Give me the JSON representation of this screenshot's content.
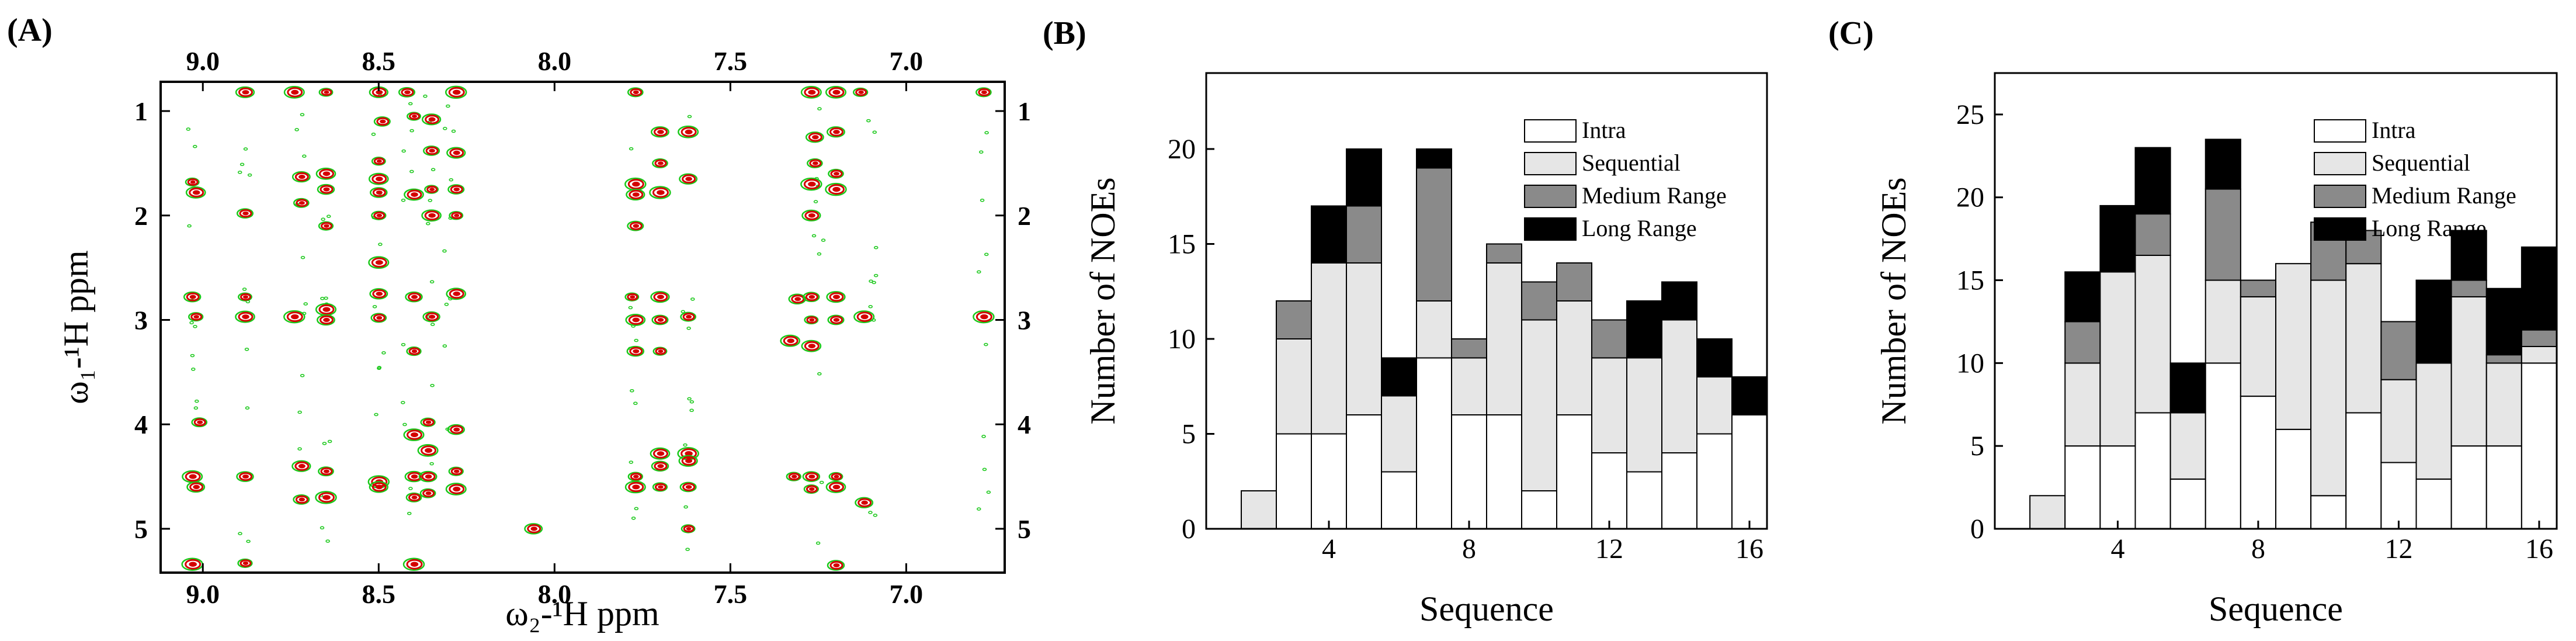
{
  "colors": {
    "intra": "#ffffff",
    "sequential": "#e6e6e6",
    "medium": "#8a8a8a",
    "long": "#000000",
    "peak_red": "#d40000",
    "peak_green": "#19c819"
  },
  "chart_data": [
    {
      "type": "heatmap",
      "subtype": "2D NMR NOESY spectrum overlay",
      "panel": "(A)",
      "title": "",
      "xlabel": "ω₂-¹H ppm",
      "ylabel": "ω₁-¹H ppm",
      "xlim": [
        9.12,
        6.72
      ],
      "ylim": [
        0.72,
        5.42
      ],
      "xticks": [
        "9.0",
        "8.5",
        "8.0",
        "7.5",
        "7.0"
      ],
      "xtick_values": [
        9.0,
        8.5,
        8.0,
        7.5,
        7.0
      ],
      "yticks": [
        "1",
        "2",
        "3",
        "4",
        "5"
      ],
      "ytick_values": [
        1,
        2,
        3,
        4,
        5
      ],
      "series_colors": [
        "#d40000",
        "#19c819"
      ],
      "x_columns": [
        9.03,
        8.88,
        8.72,
        8.65,
        8.5,
        8.42,
        8.36,
        8.3,
        7.77,
        7.62,
        7.25,
        7.1,
        6.78
      ],
      "y_rows": [
        0.82,
        1.05,
        1.4,
        1.63,
        1.75,
        1.88,
        2.0,
        2.45,
        2.75,
        2.97,
        3.08,
        3.3,
        3.55,
        3.98,
        4.1,
        4.25,
        4.4,
        4.5,
        4.6,
        4.7,
        5.02,
        5.33
      ],
      "points": [
        [
          9.03,
          1.68
        ],
        [
          9.02,
          1.78
        ],
        [
          9.03,
          2.78
        ],
        [
          9.02,
          2.97
        ],
        [
          9.03,
          4.5
        ],
        [
          9.02,
          4.6
        ],
        [
          9.01,
          3.98
        ],
        [
          9.03,
          5.34
        ],
        [
          8.88,
          0.82
        ],
        [
          8.88,
          1.98
        ],
        [
          8.88,
          2.78
        ],
        [
          8.88,
          2.97
        ],
        [
          8.88,
          4.5
        ],
        [
          8.88,
          5.33
        ],
        [
          8.74,
          0.82
        ],
        [
          8.72,
          1.63
        ],
        [
          8.72,
          1.88
        ],
        [
          8.74,
          2.97
        ],
        [
          8.72,
          4.4
        ],
        [
          8.72,
          4.72
        ],
        [
          8.65,
          0.82
        ],
        [
          8.65,
          1.6
        ],
        [
          8.65,
          1.75
        ],
        [
          8.65,
          2.1
        ],
        [
          8.65,
          2.9
        ],
        [
          8.65,
          3.0
        ],
        [
          8.65,
          4.45
        ],
        [
          8.65,
          4.7
        ],
        [
          8.5,
          0.82
        ],
        [
          8.49,
          1.1
        ],
        [
          8.5,
          1.48
        ],
        [
          8.5,
          1.65
        ],
        [
          8.5,
          1.78
        ],
        [
          8.5,
          2.0
        ],
        [
          8.5,
          2.45
        ],
        [
          8.5,
          2.75
        ],
        [
          8.5,
          2.98
        ],
        [
          8.5,
          4.55
        ],
        [
          8.5,
          4.6
        ],
        [
          8.42,
          0.82
        ],
        [
          8.4,
          1.05
        ],
        [
          8.4,
          1.8
        ],
        [
          8.4,
          2.78
        ],
        [
          8.4,
          3.3
        ],
        [
          8.4,
          4.1
        ],
        [
          8.4,
          4.5
        ],
        [
          8.4,
          4.7
        ],
        [
          8.4,
          5.34
        ],
        [
          8.35,
          1.08
        ],
        [
          8.35,
          1.38
        ],
        [
          8.35,
          1.75
        ],
        [
          8.35,
          2.0
        ],
        [
          8.35,
          2.97
        ],
        [
          8.36,
          3.98
        ],
        [
          8.36,
          4.25
        ],
        [
          8.36,
          4.5
        ],
        [
          8.36,
          4.66
        ],
        [
          8.28,
          0.82
        ],
        [
          8.28,
          1.4
        ],
        [
          8.28,
          1.75
        ],
        [
          8.28,
          2.0
        ],
        [
          8.28,
          2.75
        ],
        [
          8.28,
          4.05
        ],
        [
          8.28,
          4.45
        ],
        [
          8.28,
          4.62
        ],
        [
          8.06,
          5.0
        ],
        [
          7.77,
          0.82
        ],
        [
          7.77,
          1.7
        ],
        [
          7.77,
          1.8
        ],
        [
          7.77,
          2.1
        ],
        [
          7.78,
          2.78
        ],
        [
          7.77,
          3.0
        ],
        [
          7.77,
          3.3
        ],
        [
          7.77,
          4.5
        ],
        [
          7.77,
          4.6
        ],
        [
          7.7,
          1.2
        ],
        [
          7.7,
          1.5
        ],
        [
          7.7,
          1.78
        ],
        [
          7.7,
          2.78
        ],
        [
          7.7,
          3.0
        ],
        [
          7.7,
          3.3
        ],
        [
          7.7,
          4.28
        ],
        [
          7.7,
          4.4
        ],
        [
          7.7,
          4.6
        ],
        [
          7.62,
          1.2
        ],
        [
          7.62,
          1.65
        ],
        [
          7.62,
          2.97
        ],
        [
          7.62,
          4.28
        ],
        [
          7.62,
          4.35
        ],
        [
          7.62,
          4.6
        ],
        [
          7.62,
          5.0
        ],
        [
          7.33,
          3.2
        ],
        [
          7.31,
          2.8
        ],
        [
          7.32,
          4.5
        ],
        [
          7.27,
          0.82
        ],
        [
          7.26,
          1.25
        ],
        [
          7.26,
          1.5
        ],
        [
          7.27,
          1.7
        ],
        [
          7.27,
          2.0
        ],
        [
          7.27,
          2.78
        ],
        [
          7.27,
          3.0
        ],
        [
          7.27,
          3.25
        ],
        [
          7.27,
          4.5
        ],
        [
          7.27,
          4.62
        ],
        [
          7.2,
          0.82
        ],
        [
          7.2,
          1.2
        ],
        [
          7.2,
          1.6
        ],
        [
          7.2,
          1.75
        ],
        [
          7.2,
          2.78
        ],
        [
          7.2,
          3.0
        ],
        [
          7.2,
          4.5
        ],
        [
          7.2,
          4.6
        ],
        [
          7.2,
          5.35
        ],
        [
          7.13,
          0.82
        ],
        [
          7.12,
          2.97
        ],
        [
          7.12,
          4.75
        ],
        [
          6.78,
          0.82
        ],
        [
          6.78,
          2.97
        ]
      ]
    },
    {
      "type": "bar",
      "subtype": "stacked",
      "panel": "(B)",
      "title": "",
      "xlabel": "Sequence",
      "ylabel": "Number of NOEs",
      "xlim": [
        0.5,
        16.5
      ],
      "ylim": [
        0,
        24
      ],
      "xticks": [
        4,
        8,
        12,
        16
      ],
      "yticks": [
        0,
        5,
        10,
        15,
        20
      ],
      "legend_position": "top-right",
      "categories": [
        1,
        2,
        3,
        4,
        5,
        6,
        7,
        8,
        9,
        10,
        11,
        12,
        13,
        14,
        15,
        16
      ],
      "series": [
        {
          "name": "Intra",
          "values": [
            0,
            0,
            5,
            5,
            6,
            3,
            9,
            6,
            6,
            2,
            6,
            4,
            3,
            4,
            5,
            6
          ]
        },
        {
          "name": "Sequential",
          "values": [
            0,
            2,
            5,
            9,
            8,
            4,
            3,
            3,
            8,
            9,
            6,
            5,
            6,
            7,
            3,
            0
          ]
        },
        {
          "name": "Medium Range",
          "values": [
            0,
            0,
            2,
            0,
            3,
            0,
            7,
            1,
            1,
            2,
            2,
            2,
            0,
            0,
            0,
            0
          ]
        },
        {
          "name": "Long Range",
          "values": [
            0,
            0,
            0,
            3,
            3,
            2,
            1,
            0,
            0,
            0,
            0,
            0,
            3,
            2,
            2,
            2
          ]
        }
      ]
    },
    {
      "type": "bar",
      "subtype": "stacked",
      "panel": "(C)",
      "title": "",
      "xlabel": "Sequence",
      "ylabel": "Number of NOEs",
      "xlim": [
        0.5,
        16.5
      ],
      "ylim": [
        0,
        27.5
      ],
      "xticks": [
        4,
        8,
        12,
        16
      ],
      "yticks": [
        0,
        5,
        10,
        15,
        20,
        25
      ],
      "legend_position": "top-right",
      "categories": [
        1,
        2,
        3,
        4,
        5,
        6,
        7,
        8,
        9,
        10,
        11,
        12,
        13,
        14,
        15,
        16
      ],
      "series": [
        {
          "name": "Intra",
          "values": [
            0,
            0,
            5,
            5,
            7,
            3,
            10,
            8,
            6,
            2,
            7,
            4,
            3,
            5,
            5,
            10
          ]
        },
        {
          "name": "Sequential",
          "values": [
            0,
            2,
            5,
            10.5,
            9.5,
            4,
            5,
            6,
            10,
            13,
            9,
            5,
            7,
            9,
            5,
            1
          ]
        },
        {
          "name": "Medium Range",
          "values": [
            0,
            0,
            2.5,
            0,
            2.5,
            0,
            5.5,
            1,
            0,
            3.5,
            2,
            3.5,
            0,
            1,
            0.5,
            1
          ]
        },
        {
          "name": "Long Range",
          "values": [
            0,
            0,
            3,
            4,
            4,
            3,
            3,
            0,
            0,
            0,
            0,
            0,
            5,
            3,
            4,
            5
          ]
        }
      ]
    }
  ]
}
